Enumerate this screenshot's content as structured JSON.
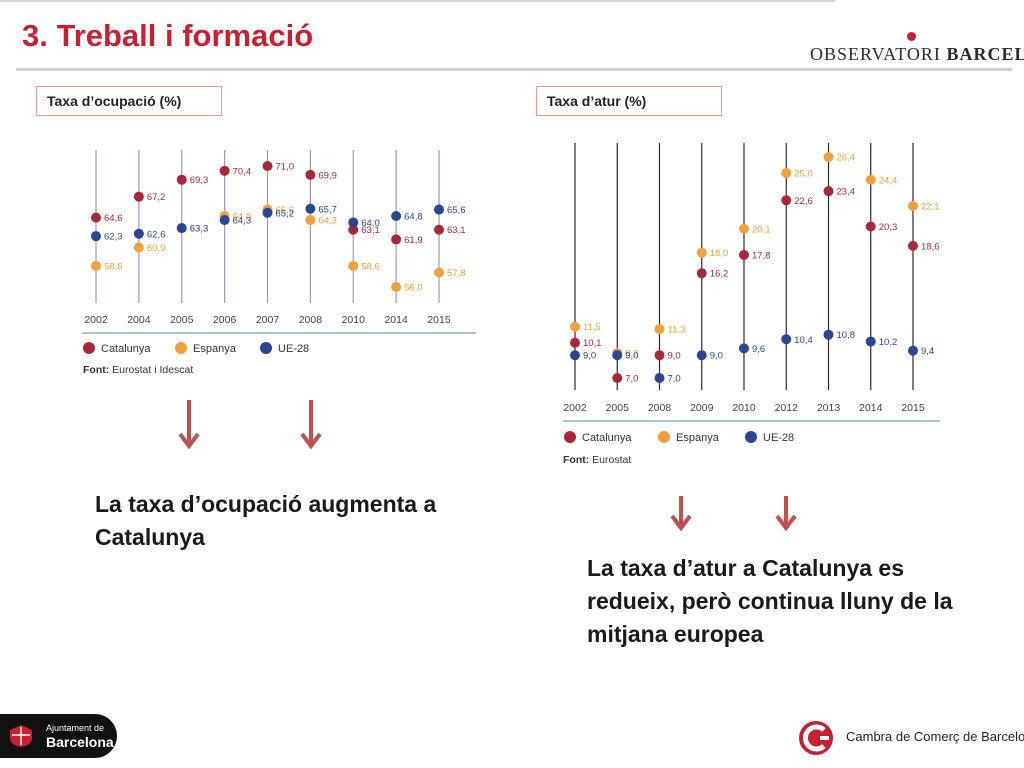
{
  "slide": {
    "title": "3. Treball i formació",
    "logo_text_left": "OBSERVATORI ",
    "logo_text_right": "BARCELONA",
    "footer_left": {
      "small": "Ajuntament de",
      "big": "Barcelona"
    },
    "footer_right": "Cambra de Comerç de Barcelona"
  },
  "colors": {
    "catalunya": "#a82838",
    "espanya": "#f2a03a",
    "ue28": "#2a4592",
    "arrow": "#c0504d",
    "title": "#c8202f"
  },
  "conclusions": {
    "employment": "La taxa d’ocupació augmenta a Catalunya",
    "unemployment": "La taxa d’atur a Catalunya es redueix, però continua lluny de la mitjana europea"
  },
  "chart_data": [
    {
      "type": "scatter",
      "title": "Taxa d’ocupació (%)",
      "categories": [
        "2002",
        "2004",
        "2005",
        "2006",
        "2007",
        "2008",
        "2010",
        "2014",
        "2015"
      ],
      "series": [
        {
          "name": "Catalunya",
          "values": [
            64.6,
            67.2,
            69.3,
            70.4,
            71.0,
            69.9,
            63.1,
            61.9,
            63.1
          ],
          "labels": [
            "64,6",
            "67,2",
            "69,3",
            "70,4",
            "71,0",
            "69,9",
            "63,1",
            "61,9",
            "63,1"
          ]
        },
        {
          "name": "Espanya",
          "values": [
            58.6,
            60.9,
            63.3,
            64.8,
            65.6,
            64.3,
            58.6,
            56.0,
            57.8
          ],
          "labels": [
            "58,6",
            "60,9",
            "63,3",
            "64,8",
            "65,6",
            "64,3",
            "58,6",
            "56,0",
            "57,8"
          ]
        },
        {
          "name": "UE-28",
          "values": [
            62.3,
            62.6,
            63.3,
            64.3,
            65.2,
            65.7,
            64.0,
            64.8,
            65.6
          ],
          "labels": [
            "62,3",
            "62,6",
            "63,3",
            "64,3",
            "65,2",
            "65,7",
            "64,0",
            "64,8",
            "65,6"
          ]
        }
      ],
      "legend_position": "bottom-left",
      "source": "Font: Eurostat i Idescat",
      "source_prefix": "Font:",
      "source_text": " Eurostat i Idescat"
    },
    {
      "type": "scatter",
      "title": "Taxa d’atur (%)",
      "categories": [
        "2002",
        "2005",
        "2008",
        "2009",
        "2010",
        "2012",
        "2013",
        "2014",
        "2015"
      ],
      "series": [
        {
          "name": "Catalunya",
          "values": [
            10.1,
            7.0,
            9.0,
            16.2,
            17.8,
            22.6,
            23.4,
            20.3,
            18.6
          ],
          "labels": [
            "10,1",
            "7,0",
            "9,0",
            "16,2",
            "17,8",
            "22,6",
            "23,4",
            "20,3",
            "18,6"
          ]
        },
        {
          "name": "Espanya",
          "values": [
            11.5,
            9.2,
            11.3,
            18.0,
            20.1,
            25.0,
            26.4,
            24.4,
            22.1
          ],
          "labels": [
            "11,5",
            "9,2",
            "11,3",
            "18,0",
            "20,1",
            "25,0",
            "26,4",
            "24,4",
            "22,1"
          ]
        },
        {
          "name": "UE-28",
          "values": [
            9.0,
            9.0,
            7.0,
            9.0,
            9.6,
            10.4,
            10.8,
            10.2,
            9.4
          ],
          "labels": [
            "9,0",
            "9,0",
            "7,0",
            "9,0",
            "9,6",
            "10,4",
            "10,8",
            "10,2",
            "9,4"
          ]
        }
      ],
      "legend_position": "bottom-left",
      "source": "Font: Eurostat",
      "source_prefix": "Font:",
      "source_text": " Eurostat"
    }
  ]
}
